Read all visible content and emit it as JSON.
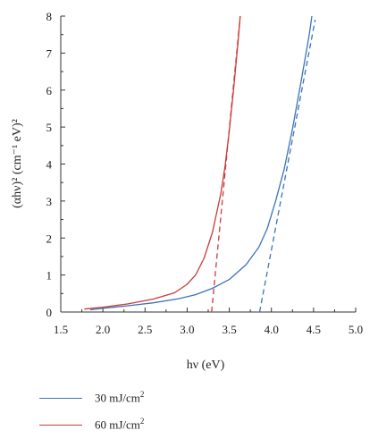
{
  "chart_data": {
    "type": "line",
    "xlabel": "hν (eV)",
    "ylabel": "(αhν)² (cm⁻¹ eV)²",
    "xlim": [
      1.5,
      5.0
    ],
    "ylim": [
      0,
      8
    ],
    "xticks": [
      "1.5",
      "2.0",
      "2.5",
      "3.0",
      "3.5",
      "4.0",
      "4.5",
      "5.0"
    ],
    "yticks": [
      "0",
      "1",
      "2",
      "3",
      "4",
      "5",
      "6",
      "7",
      "8"
    ],
    "grid": false,
    "legend_position": "bottom-left",
    "series": [
      {
        "name": "30 mJ/cm²",
        "color": "#3b73b9",
        "style": "solid",
        "x": [
          1.85,
          2.0,
          2.3,
          2.6,
          2.9,
          3.1,
          3.3,
          3.5,
          3.7,
          3.85,
          3.95,
          4.05,
          4.15,
          4.25,
          4.35,
          4.45,
          4.48
        ],
        "y": [
          0.06,
          0.1,
          0.17,
          0.25,
          0.36,
          0.47,
          0.64,
          0.88,
          1.28,
          1.75,
          2.25,
          3.0,
          3.85,
          4.95,
          6.2,
          7.5,
          8.0
        ]
      },
      {
        "name": "60 mJ/cm²",
        "color": "#cc3a3a",
        "style": "solid",
        "x": [
          1.78,
          2.0,
          2.3,
          2.6,
          2.85,
          3.0,
          3.1,
          3.2,
          3.3,
          3.4,
          3.45,
          3.5,
          3.55,
          3.6,
          3.63
        ],
        "y": [
          0.08,
          0.13,
          0.22,
          0.35,
          0.52,
          0.75,
          1.0,
          1.45,
          2.15,
          3.2,
          3.95,
          4.9,
          6.0,
          7.2,
          8.0
        ]
      },
      {
        "color": "#3b73b9",
        "style": "dashed",
        "x": [
          3.86,
          4.52
        ],
        "y": [
          0,
          7.9
        ]
      },
      {
        "color": "#cc3a3a",
        "style": "dashed",
        "x": [
          3.29,
          3.63
        ],
        "y": [
          0,
          8.0
        ]
      }
    ]
  },
  "legend": [
    {
      "base": "30 mJ/cm",
      "sup": "2",
      "color": "#3b73b9"
    },
    {
      "base": "60 mJ/cm",
      "sup": "2",
      "color": "#cc3a3a"
    }
  ]
}
